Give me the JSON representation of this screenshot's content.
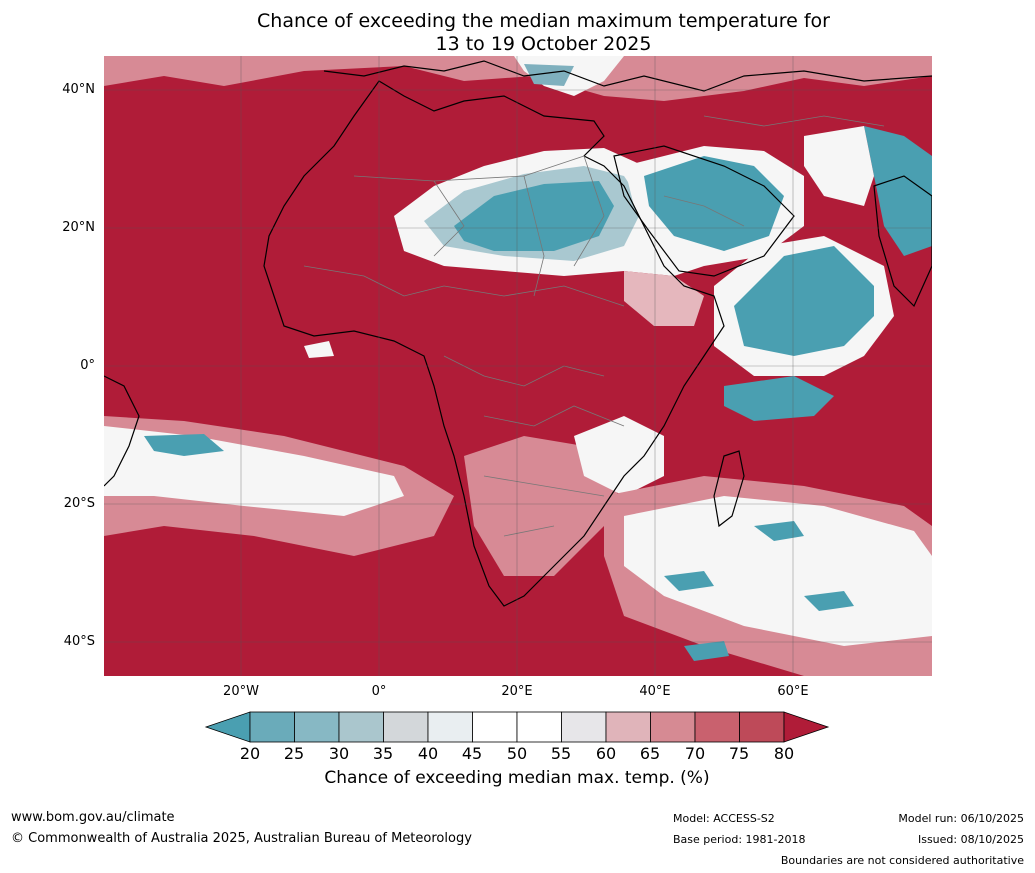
{
  "title": {
    "line1": "Chance of exceeding the median maximum temperature for",
    "line2": "13 to 19 October 2025"
  },
  "map": {
    "lat_labels": [
      "40°N",
      "20°N",
      "0°",
      "20°S",
      "40°S"
    ],
    "lon_labels": [
      "20°W",
      "0°",
      "20°E",
      "40°E",
      "60°E"
    ],
    "colors": {
      "deep_red": "#b01c38",
      "red": "#c34a5c",
      "pink": "#d78a95",
      "light_pink": "#e5b7bd",
      "white": "#f6f6f6",
      "grey": "#d4d8dc",
      "light_teal": "#a9c8d0",
      "teal": "#7fb0be",
      "deep_teal": "#4a9fb1",
      "coast": "#000000",
      "border": "#777777",
      "grid": "#555555"
    }
  },
  "colorbar": {
    "ticks": [
      "20",
      "25",
      "30",
      "35",
      "40",
      "45",
      "50",
      "55",
      "60",
      "65",
      "70",
      "75",
      "80"
    ],
    "colors": [
      "#4a9fb1",
      "#6aabba",
      "#87b8c4",
      "#aac6cd",
      "#d3d7da",
      "#e9eef1",
      "#ffffff",
      "#ffffff",
      "#e7e6e9",
      "#e0b4ba",
      "#d68a93",
      "#c9616e",
      "#be4a59",
      "#b01c38"
    ],
    "label": "Chance of exceeding median max. temp. (%)"
  },
  "footer": {
    "website": "www.bom.gov.au/climate",
    "copyright": "© Commonwealth of Australia 2025, Australian Bureau of Meteorology",
    "model": "Model: ACCESS-S2",
    "base_period": "Base period: 1981-2018",
    "model_run": "Model run: 06/10/2025",
    "issued": "Issued: 08/10/2025",
    "disclaimer": "Boundaries are not considered authoritative"
  }
}
